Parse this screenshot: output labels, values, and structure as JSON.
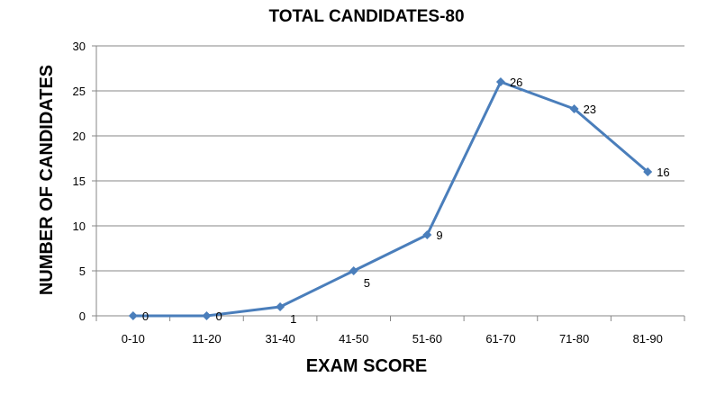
{
  "chart_data": {
    "type": "line",
    "title": "TOTAL CANDIDATES-80",
    "xlabel": "EXAM SCORE",
    "ylabel": "NUMBER OF CANDIDATES",
    "categories": [
      "0-10",
      "11-20",
      "31-40",
      "41-50",
      "51-60",
      "61-70",
      "71-80",
      "81-90"
    ],
    "series": [
      {
        "values": [
          0,
          0,
          1,
          5,
          9,
          26,
          23,
          16
        ],
        "color": "#4a7ebb"
      }
    ],
    "ylim": [
      0,
      30
    ],
    "yticks": [
      0,
      5,
      10,
      15,
      20,
      25,
      30
    ],
    "grid": true,
    "legend": "none",
    "data_labels": true
  }
}
